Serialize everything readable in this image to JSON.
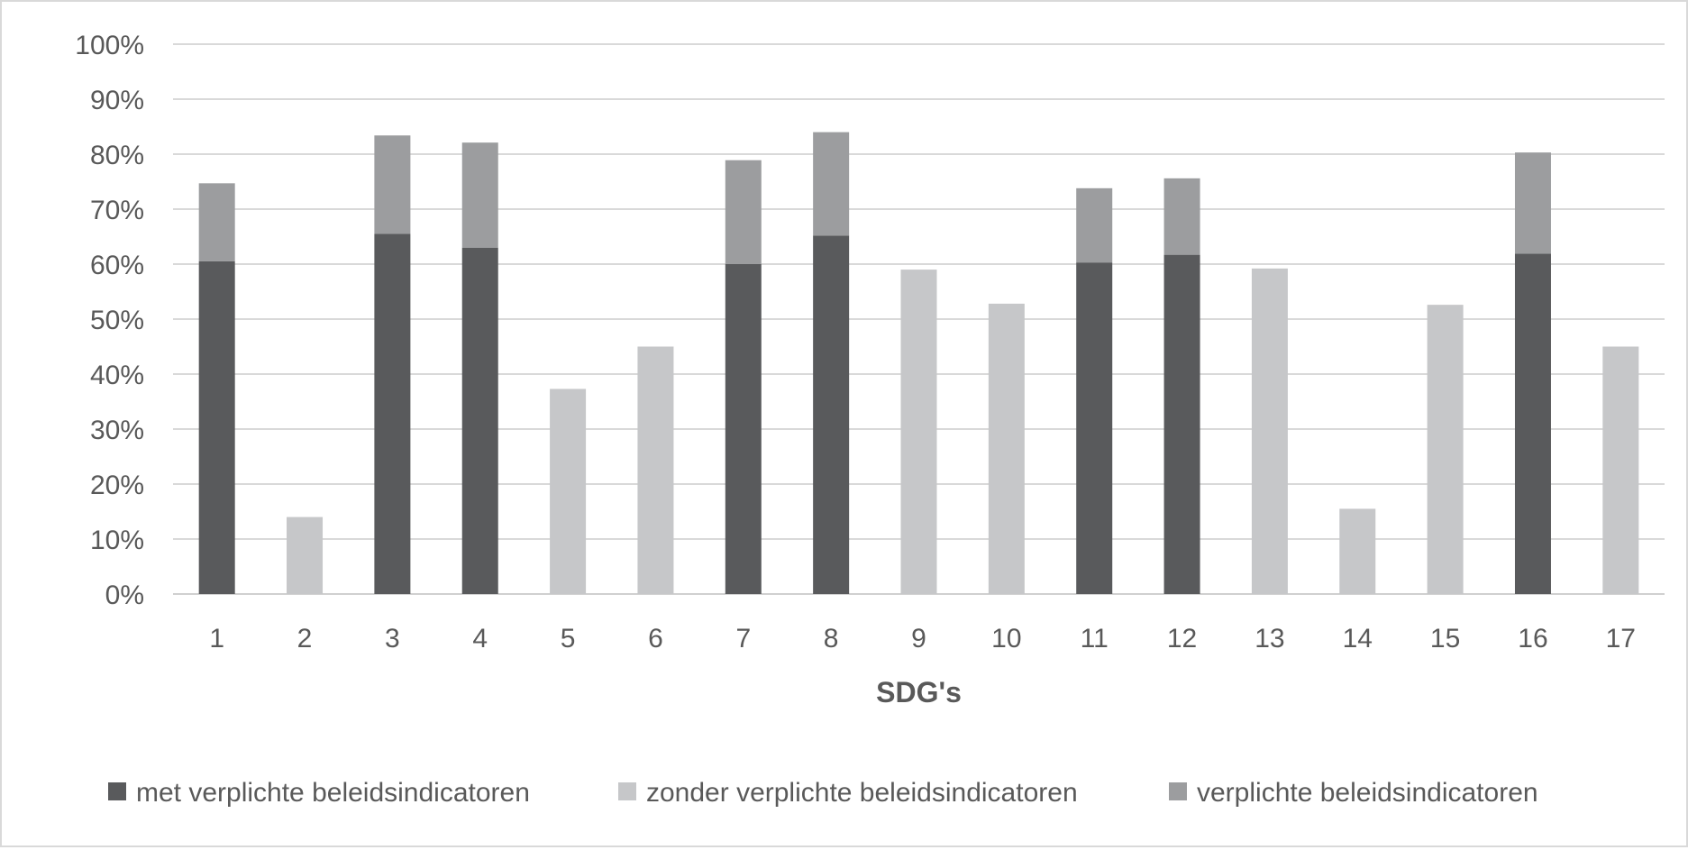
{
  "chart_data": {
    "type": "bar",
    "stacked": true,
    "title": "",
    "xlabel": "SDG's",
    "ylabel": "",
    "ylim": [
      0,
      100
    ],
    "y_ticks": [
      "0%",
      "10%",
      "20%",
      "30%",
      "40%",
      "50%",
      "60%",
      "70%",
      "80%",
      "90%",
      "100%"
    ],
    "categories": [
      "1",
      "2",
      "3",
      "4",
      "5",
      "6",
      "7",
      "8",
      "9",
      "10",
      "11",
      "12",
      "13",
      "14",
      "15",
      "16",
      "17"
    ],
    "series": [
      {
        "name": "met verplichte beleidsindicatoren",
        "color": "#595a5c",
        "values": [
          60.5,
          0,
          65.5,
          63,
          0,
          0,
          60,
          65.2,
          0,
          0,
          60.3,
          61.7,
          0,
          0,
          0,
          61.9,
          0
        ]
      },
      {
        "name": "zonder verplichte beleidsindicatoren",
        "color": "#c6c7c9",
        "values": [
          0,
          14,
          0,
          0,
          37.3,
          45,
          0,
          0,
          59,
          52.8,
          0,
          0,
          59.2,
          15.5,
          52.6,
          0,
          45
        ]
      },
      {
        "name": "verplichte beleidsindicatoren",
        "color": "#9c9d9f",
        "values": [
          14.2,
          0,
          17.9,
          19.1,
          0,
          0,
          18.9,
          18.8,
          0,
          0,
          13.5,
          13.9,
          0,
          0,
          0,
          18.4,
          0
        ]
      }
    ],
    "grid": true,
    "legend_position": "bottom"
  }
}
